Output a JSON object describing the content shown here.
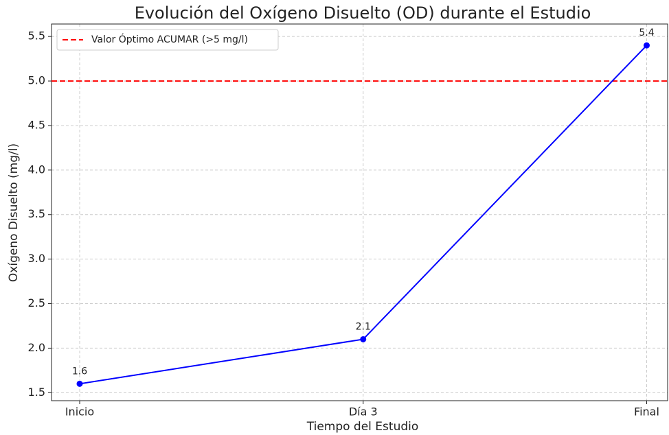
{
  "chart_data": {
    "type": "line",
    "title": "Evolución del Oxígeno Disuelto (OD) durante el Estudio",
    "x_label": "Tiempo del Estudio",
    "y_label": "Oxígeno Disuelto (mg/l)",
    "categories": [
      "Inicio",
      "Día 3",
      "Final"
    ],
    "series": [
      {
        "color": "#0000ff",
        "values": [
          1.6,
          2.1,
          5.4
        ]
      }
    ],
    "reference_lines": [
      {
        "name": "Valor Óptimo ACUMAR (>5 mg/l)",
        "value": 5,
        "color": "#ff0000",
        "style": "dashed"
      }
    ],
    "ylim": [
      1.41,
      5.64
    ],
    "yticks": [
      1.5,
      {
        "value": 2,
        "label": "2.0"
      },
      2.5,
      {
        "value": 3,
        "label": "3.0"
      },
      3.5,
      {
        "value": 4,
        "label": "4.0"
      },
      4.5,
      {
        "value": 5,
        "label": "5.0"
      },
      5.5
    ],
    "grid": true,
    "legend": "upper left"
  }
}
